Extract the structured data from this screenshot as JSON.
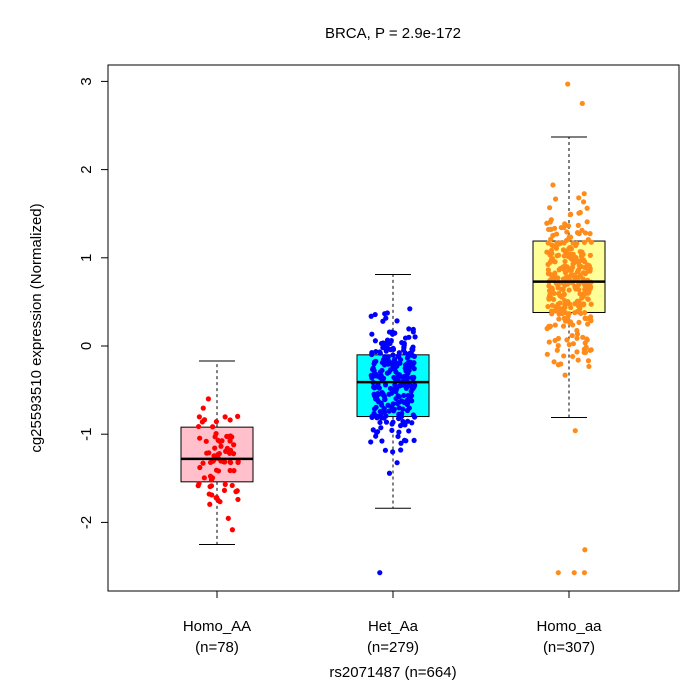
{
  "chart_data": {
    "type": "boxplot",
    "title": "BRCA, P = 2.9e-172",
    "ylabel": "cg25593510 expression (Normalized)",
    "xlabel": "rs2071487 (n=664)",
    "ylim": [
      -2.7,
      3.2
    ],
    "yticks": [
      -2,
      -1,
      0,
      1,
      2,
      3
    ],
    "ytick_labels": [
      "-2",
      "-1",
      "0",
      "1",
      "2",
      "3"
    ],
    "groups": [
      {
        "name": "Homo_AA",
        "n_label": "(n=78)",
        "n": 78,
        "box_color": "#ffc0cb",
        "point_color": "#ff0000",
        "whisker_low": -2.25,
        "q1": -1.54,
        "median": -1.28,
        "q3": -0.92,
        "whisker_high": -0.17,
        "outliers": []
      },
      {
        "name": "Het_Aa",
        "n_label": "(n=279)",
        "n": 279,
        "box_color": "#00ffff",
        "point_color": "#0000ff",
        "whisker_low": -1.84,
        "q1": -0.8,
        "median": -0.41,
        "q3": -0.1,
        "whisker_high": 0.81,
        "outliers": [
          -2.57
        ]
      },
      {
        "name": "Homo_aa",
        "n_label": "(n=307)",
        "n": 307,
        "box_color": "#ffff99",
        "point_color": "#ff8c1a",
        "whisker_low": -0.81,
        "q1": 0.38,
        "median": 0.73,
        "q3": 1.19,
        "whisker_high": 2.37,
        "outliers": [
          2.97,
          2.75,
          -0.96,
          -2.31,
          -2.57,
          -2.57,
          -2.57
        ]
      }
    ]
  }
}
